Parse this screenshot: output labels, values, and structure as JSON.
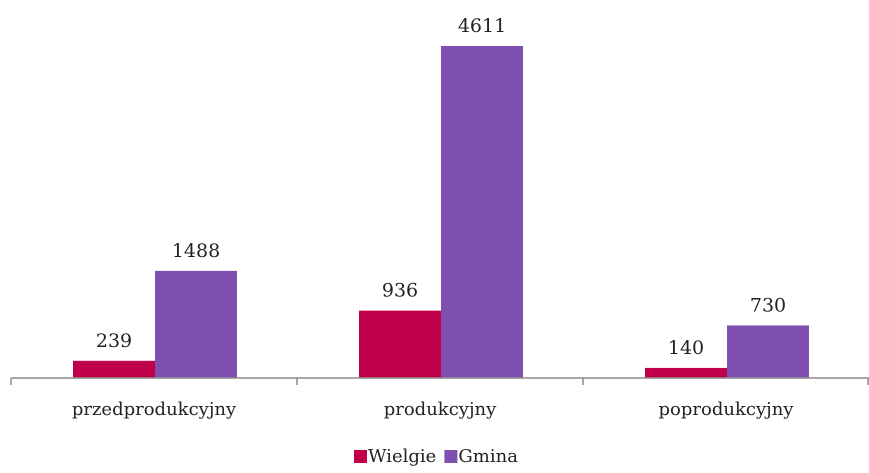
{
  "chart_data": {
    "type": "bar",
    "categories": [
      "przedprodukcyjny",
      "produkcyjny",
      "poprodukcyjny"
    ],
    "series": [
      {
        "name": "Wielgie",
        "values": [
          239,
          936,
          140
        ],
        "color": "#c0004a"
      },
      {
        "name": "Gmina",
        "values": [
          1488,
          4611,
          730
        ],
        "color": "#8050b0"
      }
    ],
    "data_labels": true,
    "ylim": [
      0,
      4611
    ],
    "grid": false,
    "legend": "bottom-center",
    "axis_color": "#8c8c8c"
  }
}
